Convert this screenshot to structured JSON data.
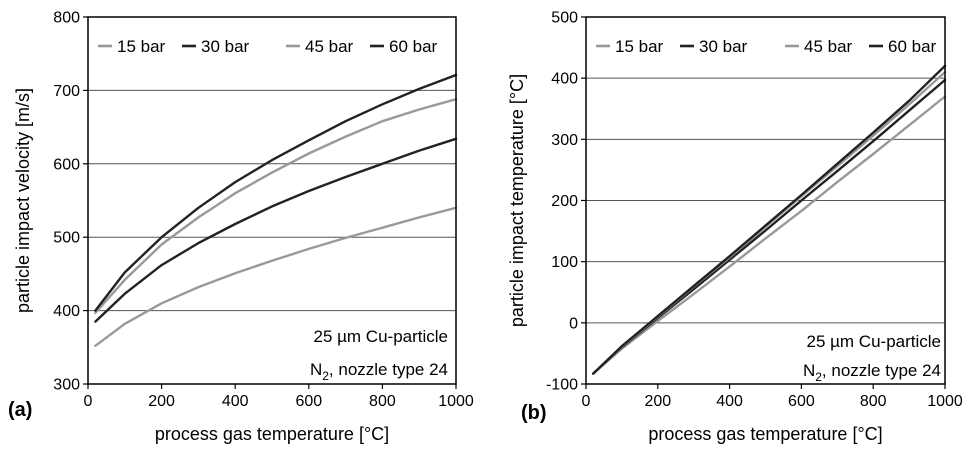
{
  "chart_data": [
    {
      "type": "line",
      "panel_label": "(a)",
      "title": "",
      "xlabel": "process gas temperature [°C]",
      "ylabel": "particle impact velocity [m/s]",
      "xlim": [
        0,
        1000
      ],
      "ylim": [
        300,
        800
      ],
      "xticks": [
        0,
        200,
        400,
        600,
        800,
        1000
      ],
      "yticks": [
        300,
        400,
        500,
        600,
        700,
        800
      ],
      "grid": "horizontal",
      "legend_position": "top",
      "annotation": [
        "25 µm Cu-particle",
        "N",
        "2",
        ", nozzle type 24"
      ],
      "series": [
        {
          "name": "15 bar",
          "color": "#999999",
          "x": [
            20,
            100,
            200,
            300,
            400,
            500,
            600,
            700,
            800,
            900,
            1000
          ],
          "y": [
            352,
            382,
            410,
            432,
            451,
            468,
            484,
            499,
            513,
            527,
            540
          ]
        },
        {
          "name": "30 bar",
          "color": "#222222",
          "x": [
            20,
            100,
            200,
            300,
            400,
            500,
            600,
            700,
            800,
            900,
            1000
          ],
          "y": [
            385,
            423,
            462,
            492,
            518,
            542,
            563,
            582,
            600,
            618,
            634
          ]
        },
        {
          "name": "45 bar",
          "color": "#999999",
          "x": [
            20,
            100,
            200,
            300,
            400,
            500,
            600,
            700,
            800,
            900,
            1000
          ],
          "y": [
            397,
            442,
            490,
            527,
            560,
            588,
            614,
            637,
            658,
            674,
            688
          ]
        },
        {
          "name": "60 bar",
          "color": "#222222",
          "x": [
            20,
            100,
            200,
            300,
            400,
            500,
            600,
            700,
            800,
            900,
            1000
          ],
          "y": [
            400,
            452,
            500,
            540,
            575,
            605,
            632,
            658,
            681,
            702,
            721
          ]
        }
      ]
    },
    {
      "type": "line",
      "panel_label": "(b)",
      "title": "",
      "xlabel": "process gas temperature [°C]",
      "ylabel": "particle impact temperature [°C]",
      "xlim": [
        0,
        1000
      ],
      "ylim": [
        -100,
        500
      ],
      "xticks": [
        0,
        200,
        400,
        600,
        800,
        1000
      ],
      "yticks": [
        -100,
        0,
        100,
        200,
        300,
        400,
        500
      ],
      "grid": "horizontal",
      "legend_position": "top",
      "annotation": [
        "25 µm Cu-particle",
        "N",
        "2",
        ", nozzle type 24"
      ],
      "series": [
        {
          "name": "15 bar",
          "color": "#999999",
          "x": [
            20,
            100,
            200,
            300,
            400,
            500,
            600,
            700,
            800,
            900,
            1000
          ],
          "y": [
            -83,
            -42,
            3,
            47,
            92,
            138,
            183,
            230,
            276,
            323,
            370
          ]
        },
        {
          "name": "30 bar",
          "color": "#222222",
          "x": [
            20,
            100,
            200,
            300,
            400,
            500,
            600,
            700,
            800,
            900,
            1000
          ],
          "y": [
            -83,
            -40,
            8,
            55,
            103,
            151,
            200,
            248,
            297,
            347,
            397
          ]
        },
        {
          "name": "45 bar",
          "color": "#999999",
          "x": [
            20,
            100,
            200,
            300,
            400,
            500,
            600,
            700,
            800,
            900,
            1000
          ],
          "y": [
            -83,
            -39,
            10,
            59,
            107,
            157,
            207,
            256,
            306,
            357,
            410
          ]
        },
        {
          "name": "60 bar",
          "color": "#222222",
          "x": [
            20,
            100,
            200,
            300,
            400,
            500,
            600,
            700,
            800,
            900,
            1000
          ],
          "y": [
            -83,
            -38,
            11,
            60,
            109,
            159,
            209,
            260,
            311,
            363,
            420
          ]
        }
      ]
    }
  ]
}
